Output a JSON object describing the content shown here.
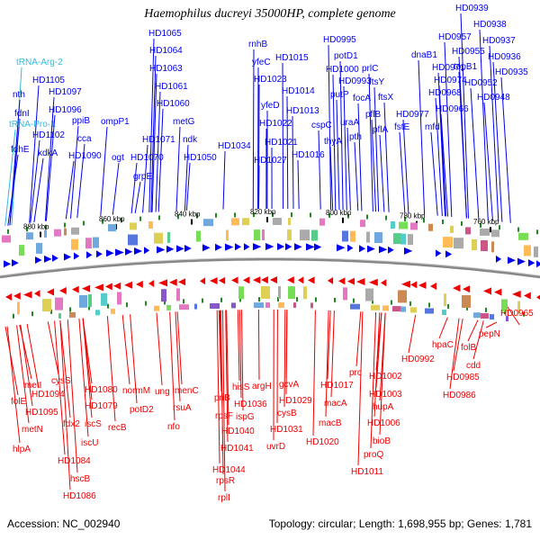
{
  "title": "Haemophilus ducreyi 35000HP, complete genome",
  "footer": {
    "accession_label": "Accession:",
    "accession": "NC_002940",
    "topology_label": "Topology:",
    "topology": "circular;",
    "length_label": "Length:",
    "length": "1,698,955 bp;",
    "genes_label": "Genes:",
    "genes": "1,781"
  },
  "colors": {
    "forward": "#0000ee",
    "reverse": "#ee0000",
    "trna": "#33bbdd",
    "tick": "#228822",
    "backbone": "#888888"
  },
  "scale_marks": [
    "880 kbp",
    "860 kbp",
    "840 kbp",
    "820 kbp",
    "800 kbp",
    "780 kbp",
    "760 kbp"
  ],
  "forward_labels": [
    {
      "text": "tRNA-Arg-2",
      "type": "trna"
    },
    {
      "text": "HD1105",
      "type": "gene"
    },
    {
      "text": "nth",
      "type": "gene"
    },
    {
      "text": "fdnI",
      "type": "gene"
    },
    {
      "text": "tRNA-Pro-1",
      "type": "trna"
    },
    {
      "text": "fdhE",
      "type": "gene"
    },
    {
      "text": "HD1097",
      "type": "gene"
    },
    {
      "text": "HD1096",
      "type": "gene"
    },
    {
      "text": "HD1102",
      "type": "gene"
    },
    {
      "text": "kdkA",
      "type": "gene"
    },
    {
      "text": "ppiB",
      "type": "gene"
    },
    {
      "text": "cca",
      "type": "gene"
    },
    {
      "text": "HD1090",
      "type": "gene"
    },
    {
      "text": "ompP1",
      "type": "gene"
    },
    {
      "text": "ogt",
      "type": "gene"
    },
    {
      "text": "HD1071",
      "type": "gene"
    },
    {
      "text": "HD1070",
      "type": "gene"
    },
    {
      "text": "grpE",
      "type": "gene"
    },
    {
      "text": "HD1065",
      "type": "gene"
    },
    {
      "text": "HD1064",
      "type": "gene"
    },
    {
      "text": "HD1063",
      "type": "gene"
    },
    {
      "text": "HD1061",
      "type": "gene"
    },
    {
      "text": "HD1060",
      "type": "gene"
    },
    {
      "text": "metG",
      "type": "gene"
    },
    {
      "text": "ndk",
      "type": "gene"
    },
    {
      "text": "HD1050",
      "type": "gene"
    },
    {
      "text": "HD1034",
      "type": "gene"
    },
    {
      "text": "rnhB",
      "type": "gene"
    },
    {
      "text": "yfeC",
      "type": "gene"
    },
    {
      "text": "HD1015",
      "type": "gene"
    },
    {
      "text": "HD1023",
      "type": "gene"
    },
    {
      "text": "yfeD",
      "type": "gene"
    },
    {
      "text": "HD1022",
      "type": "gene"
    },
    {
      "text": "HD1014",
      "type": "gene"
    },
    {
      "text": "HD1013",
      "type": "gene"
    },
    {
      "text": "HD1021",
      "type": "gene"
    },
    {
      "text": "HD1027",
      "type": "gene"
    },
    {
      "text": "HD1016",
      "type": "gene"
    },
    {
      "text": "cspC",
      "type": "gene"
    },
    {
      "text": "HD0995",
      "type": "gene"
    },
    {
      "text": "potD1",
      "type": "gene"
    },
    {
      "text": "HD1000",
      "type": "gene"
    },
    {
      "text": "HD0993",
      "type": "gene"
    },
    {
      "text": "putP",
      "type": "gene"
    },
    {
      "text": "uraA",
      "type": "gene"
    },
    {
      "text": "pth",
      "type": "gene"
    },
    {
      "text": "thyA",
      "type": "gene"
    },
    {
      "text": "prlC",
      "type": "gene"
    },
    {
      "text": "focA",
      "type": "gene"
    },
    {
      "text": "pflB",
      "type": "gene"
    },
    {
      "text": "pflA",
      "type": "gene"
    },
    {
      "text": "ftsY",
      "type": "gene"
    },
    {
      "text": "ftsX",
      "type": "gene"
    },
    {
      "text": "HD0977",
      "type": "gene"
    },
    {
      "text": "fstE",
      "type": "gene"
    },
    {
      "text": "mfd",
      "type": "gene"
    },
    {
      "text": "dnaB1",
      "type": "gene"
    },
    {
      "text": "HD0974",
      "type": "gene"
    },
    {
      "text": "HD0971",
      "type": "gene"
    },
    {
      "text": "HD0968",
      "type": "gene"
    },
    {
      "text": "HD0966",
      "type": "gene"
    },
    {
      "text": "HD0957",
      "type": "gene"
    },
    {
      "text": "HD0955",
      "type": "gene"
    },
    {
      "text": "topB1",
      "type": "gene"
    },
    {
      "text": "HD0952",
      "type": "gene"
    },
    {
      "text": "HD0948",
      "type": "gene"
    },
    {
      "text": "HD0939",
      "type": "gene"
    },
    {
      "text": "HD0938",
      "type": "gene"
    },
    {
      "text": "HD0937",
      "type": "gene"
    },
    {
      "text": "HD0936",
      "type": "gene"
    },
    {
      "text": "HD0935",
      "type": "gene"
    }
  ],
  "reverse_labels": [
    "metI",
    "cysS",
    "folE",
    "HD1094",
    "HD1095",
    "metN",
    "hlpA",
    "fdx2",
    "HD1080",
    "HD1079",
    "iscS",
    "iscU",
    "HD1084",
    "hscB",
    "HD1086",
    "recB",
    "normM",
    "potD2",
    "ung",
    "menC",
    "rsuA",
    "nfo",
    "priB",
    "rpsF",
    "HD1041",
    "HD1040",
    "HD1044",
    "rpsR",
    "rplI",
    "hisS",
    "HD1036",
    "ispG",
    "argH",
    "gcvA",
    "HD1029",
    "cysB",
    "HD1031",
    "uvrD",
    "HD1017",
    "macA",
    "macB",
    "HD1020",
    "prc",
    "HD1002",
    "HD1003",
    "hupA",
    "HD1006",
    "bioB",
    "proQ",
    "HD1011",
    "HD0992",
    "hpaC",
    "HD0985",
    "folB",
    "cdd",
    "HD0986",
    "pepN",
    "HD0965"
  ]
}
